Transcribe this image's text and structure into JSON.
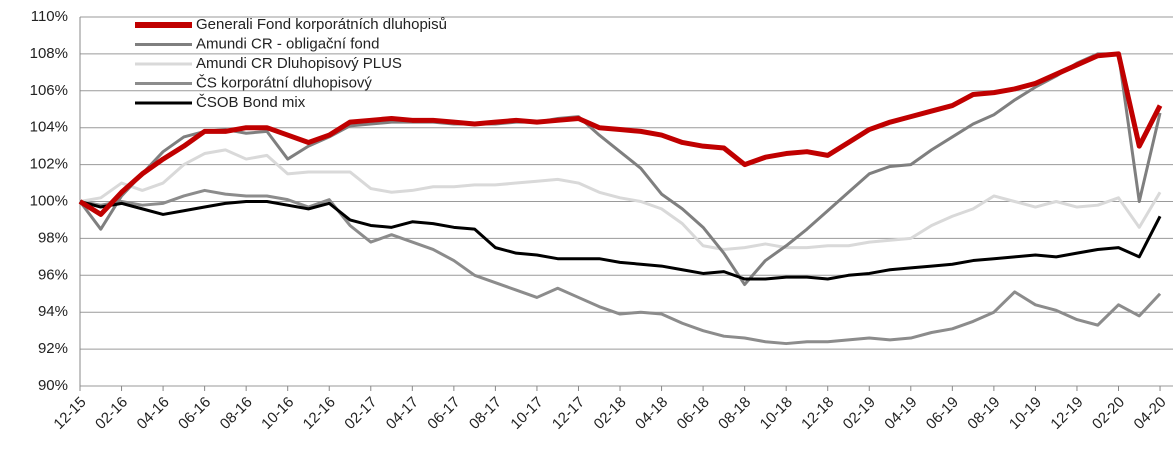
{
  "chart_data": {
    "type": "line",
    "categories": [
      "12-15",
      null,
      "02-16",
      null,
      "04-16",
      null,
      "06-16",
      null,
      "08-16",
      null,
      "10-16",
      null,
      "12-16",
      null,
      "02-17",
      null,
      "04-17",
      null,
      "06-17",
      null,
      "08-17",
      null,
      "10-17",
      null,
      "12-17",
      null,
      "02-18",
      null,
      "04-18",
      null,
      "06-18",
      null,
      "08-18",
      null,
      "10-18",
      null,
      "12-18",
      null,
      "02-19",
      null,
      "04-19",
      null,
      "06-19",
      null,
      "08-19",
      null,
      "10-19",
      null,
      "12-19",
      null,
      "02-20",
      null,
      "04-20"
    ],
    "series": [
      {
        "name": "Generali Fond korporátních dluhopisů",
        "color": "#c00000",
        "values": [
          100,
          99.3,
          100.5,
          101.5,
          102.3,
          103,
          103.8,
          103.8,
          104,
          104,
          103.6,
          103.2,
          103.6,
          104.3,
          104.4,
          104.5,
          104.4,
          104.4,
          104.3,
          104.2,
          104.3,
          104.4,
          104.3,
          104.4,
          104.5,
          104,
          103.9,
          103.8,
          103.6,
          103.2,
          103,
          102.9,
          102,
          102.4,
          102.6,
          102.7,
          102.5,
          103.2,
          103.9,
          104.3,
          104.6,
          104.9,
          105.2,
          105.8,
          105.9,
          106.1,
          106.4,
          106.9,
          107.4,
          107.9,
          108,
          103,
          105.2
        ]
      },
      {
        "name": "Amundi CR - obligační fond",
        "color": "#7f7f7f",
        "values": [
          100,
          98.5,
          100.3,
          101.5,
          102.7,
          103.5,
          103.8,
          103.9,
          103.7,
          103.8,
          102.3,
          103,
          103.5,
          104.1,
          104.2,
          104.3,
          104.3,
          104.3,
          104.2,
          104.2,
          104.2,
          104.3,
          104.3,
          104.5,
          104.6,
          103.6,
          102.7,
          101.8,
          100.4,
          99.6,
          98.6,
          97.2,
          95.5,
          96.8,
          97.6,
          98.5,
          99.5,
          100.5,
          101.5,
          101.9,
          102,
          102.8,
          103.5,
          104.2,
          104.7,
          105.5,
          106.2,
          106.8,
          107.5,
          108,
          108,
          100,
          104.8
        ]
      },
      {
        "name": "Amundi CR Dluhopisový PLUS",
        "color": "#d9d9d9",
        "values": [
          100,
          100.2,
          101,
          100.6,
          101,
          102,
          102.6,
          102.8,
          102.3,
          102.5,
          101.5,
          101.6,
          101.6,
          101.6,
          100.7,
          100.5,
          100.6,
          100.8,
          100.8,
          100.9,
          100.9,
          101,
          101.1,
          101.2,
          101,
          100.5,
          100.2,
          100,
          99.6,
          98.8,
          97.6,
          97.4,
          97.5,
          97.7,
          97.5,
          97.5,
          97.6,
          97.6,
          97.8,
          97.9,
          98,
          98.7,
          99.2,
          99.6,
          100.3,
          100,
          99.7,
          100,
          99.7,
          99.8,
          100.2,
          98.6,
          100.5
        ]
      },
      {
        "name": "ČS korporátní dluhopisový",
        "color": "#8c8c8c",
        "values": [
          100,
          99.8,
          100,
          99.8,
          99.9,
          100.3,
          100.6,
          100.4,
          100.3,
          100.3,
          100.1,
          99.7,
          100.1,
          98.7,
          97.8,
          98.2,
          97.8,
          97.4,
          96.8,
          96,
          95.6,
          95.2,
          94.8,
          95.3,
          94.8,
          94.3,
          93.9,
          94,
          93.9,
          93.4,
          93,
          92.7,
          92.6,
          92.4,
          92.3,
          92.4,
          92.4,
          92.5,
          92.6,
          92.5,
          92.6,
          92.9,
          93.1,
          93.5,
          94,
          95.1,
          94.4,
          94.1,
          93.6,
          93.3,
          94.4,
          93.8,
          95
        ]
      },
      {
        "name": "ČSOB Bond mix",
        "color": "#000000",
        "values": [
          100,
          99.7,
          99.9,
          99.6,
          99.3,
          99.5,
          99.7,
          99.9,
          100,
          100,
          99.8,
          99.6,
          99.9,
          99,
          98.7,
          98.6,
          98.9,
          98.8,
          98.6,
          98.5,
          97.5,
          97.2,
          97.1,
          96.9,
          96.9,
          96.9,
          96.7,
          96.6,
          96.5,
          96.3,
          96.1,
          96.2,
          95.8,
          95.8,
          95.9,
          95.9,
          95.8,
          96,
          96.1,
          96.3,
          96.4,
          96.5,
          96.6,
          96.8,
          96.9,
          97,
          97.1,
          97,
          97.2,
          97.4,
          97.5,
          97,
          99.2
        ]
      }
    ],
    "ylim": [
      90,
      110
    ],
    "yticks": [
      {
        "value": 90,
        "label": "90%"
      },
      {
        "value": 92,
        "label": "92%"
      },
      {
        "value": 94,
        "label": "94%"
      },
      {
        "value": 96,
        "label": "96%"
      },
      {
        "value": 98,
        "label": "98%"
      },
      {
        "value": 100,
        "label": "100%"
      },
      {
        "value": 102,
        "label": "102%"
      },
      {
        "value": 104,
        "label": "104%"
      },
      {
        "value": 106,
        "label": "106%"
      },
      {
        "value": 108,
        "label": "108%"
      },
      {
        "value": 110,
        "label": "110%"
      }
    ],
    "grid": true,
    "legend": "top-left"
  }
}
